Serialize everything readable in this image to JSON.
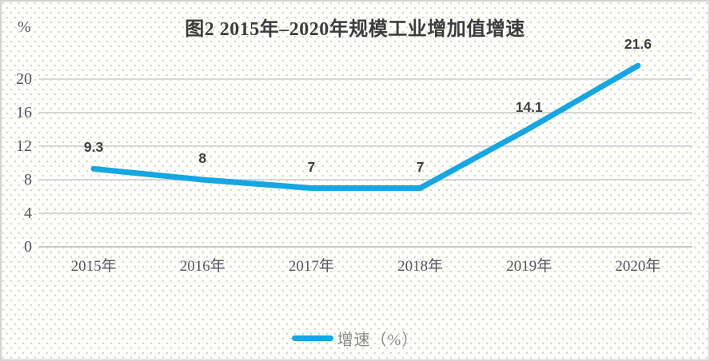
{
  "chart": {
    "title": "图2  2015年–2020年规模工业增加值增速",
    "y_axis_unit": "%",
    "legend_label": "增速（%）"
  },
  "chart_data": {
    "type": "line",
    "title": "图2  2015年–2020年规模工业增加值增速",
    "categories": [
      "2015年",
      "2016年",
      "2017年",
      "2018年",
      "2019年",
      "2020年"
    ],
    "series": [
      {
        "name": "增速（%）",
        "values": [
          9.3,
          8,
          7,
          7,
          14.1,
          21.6
        ]
      }
    ],
    "data_labels": [
      "9.3",
      "8",
      "7",
      "7",
      "14.1",
      "21.6"
    ],
    "ylabel": "%",
    "yticks": [
      0,
      4,
      8,
      12,
      16,
      20
    ],
    "ylim": [
      0,
      24
    ],
    "grid": true,
    "legend_position": "bottom",
    "colors": {
      "line": "#15a6e4",
      "gridline": "#d6d6d6",
      "zero_line": "#c9c9c9",
      "dot_pattern": "#cde0b6",
      "border": "#d2d2d2",
      "title_text": "#3c3c3c",
      "axis_text": "#55555e",
      "data_label_text": "#3e3e3e",
      "legend_text": "#898989",
      "background": "#fefefe"
    }
  }
}
